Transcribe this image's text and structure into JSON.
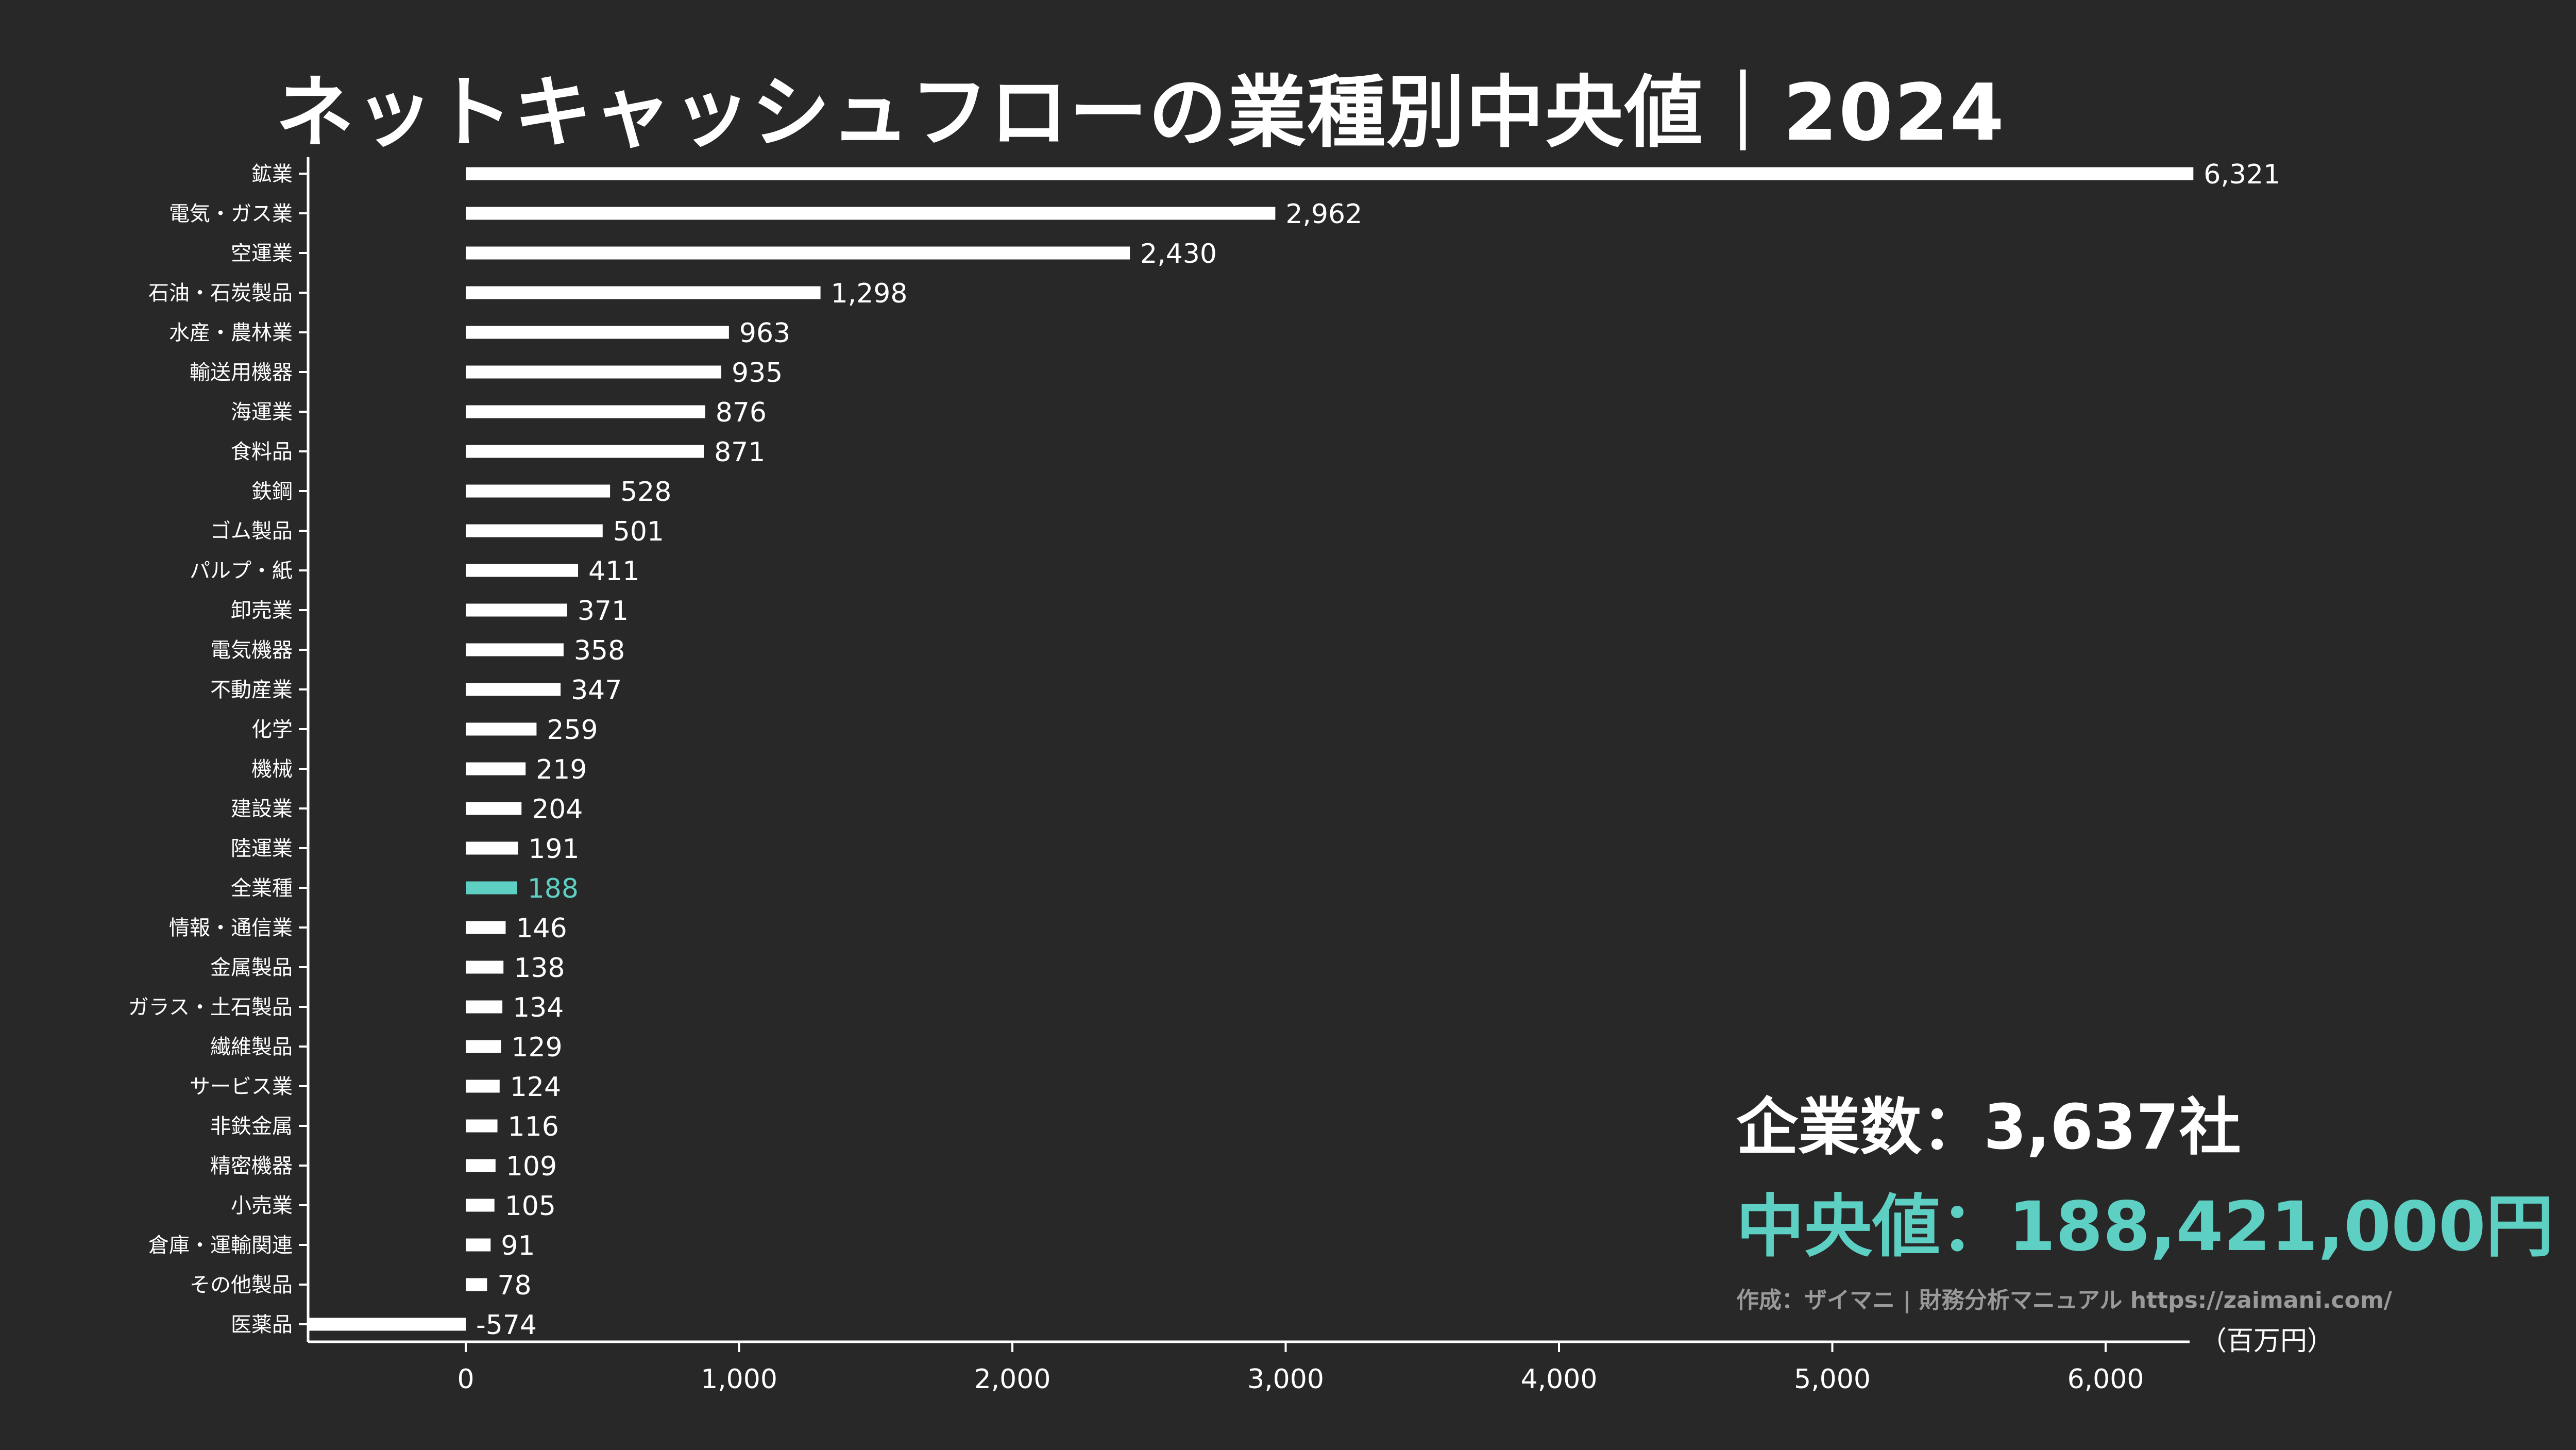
{
  "chart_data": {
    "type": "bar",
    "orientation": "horizontal",
    "title": "ネットキャッシュフローの業種別中央値｜2024",
    "unit_label": "（百万円）",
    "categories": [
      "鉱業",
      "電気・ガス業",
      "空運業",
      "石油・石炭製品",
      "水産・農林業",
      "輸送用機器",
      "海運業",
      "食料品",
      "鉄鋼",
      "ゴム製品",
      "パルプ・紙",
      "卸売業",
      "電気機器",
      "不動産業",
      "化学",
      "機械",
      "建設業",
      "陸運業",
      "全業種",
      "情報・通信業",
      "金属製品",
      "ガラス・土石製品",
      "繊維製品",
      "サービス業",
      "非鉄金属",
      "精密機器",
      "小売業",
      "倉庫・運輸関連",
      "その他製品",
      "医薬品"
    ],
    "values": [
      6321,
      2962,
      2430,
      1298,
      963,
      935,
      876,
      871,
      528,
      501,
      411,
      371,
      358,
      347,
      259,
      219,
      204,
      191,
      188,
      146,
      138,
      134,
      129,
      124,
      116,
      109,
      105,
      91,
      78,
      -574
    ],
    "value_labels": [
      "6,321",
      "2,962",
      "2,430",
      "1,298",
      "963",
      "935",
      "876",
      "871",
      "528",
      "501",
      "411",
      "371",
      "358",
      "347",
      "259",
      "219",
      "204",
      "191",
      "188",
      "146",
      "138",
      "134",
      "129",
      "124",
      "116",
      "109",
      "105",
      "91",
      "78",
      "-574"
    ],
    "highlight_category": "全業種",
    "xlim": [
      -600,
      6300
    ],
    "xticks": [
      0,
      1000,
      2000,
      3000,
      4000,
      5000,
      6000
    ],
    "xtick_labels": [
      "0",
      "1,000",
      "2,000",
      "3,000",
      "4,000",
      "5,000",
      "6,000"
    ],
    "grid": false
  },
  "colors": {
    "background": "#282828",
    "bar": "#ffffff",
    "highlight": "#5ecfc3",
    "axis": "#ffffff",
    "credit": "#9a9a9a"
  },
  "stats": {
    "company_count": "企業数：3,637社",
    "median": "中央値：188,421,000円",
    "credit": "作成：ザイマニ | 財務分析マニュアル https://zaimani.com/"
  }
}
